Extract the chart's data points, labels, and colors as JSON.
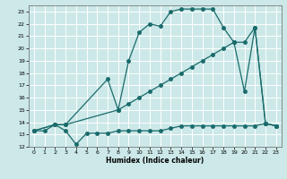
{
  "xlabel": "Humidex (Indice chaleur)",
  "bg_color": "#cce8e8",
  "grid_color": "#ffffff",
  "line_color": "#1a6b6b",
  "xlim": [
    -0.5,
    23.5
  ],
  "ylim": [
    12.0,
    23.5
  ],
  "yticks": [
    12,
    13,
    14,
    15,
    16,
    17,
    18,
    19,
    20,
    21,
    22,
    23
  ],
  "xticks": [
    0,
    1,
    2,
    3,
    4,
    5,
    6,
    7,
    8,
    9,
    10,
    11,
    12,
    13,
    14,
    15,
    16,
    17,
    18,
    19,
    20,
    21,
    22,
    23
  ],
  "line1_x": [
    0,
    1,
    2,
    3,
    4,
    5,
    6,
    7,
    8,
    9,
    10,
    11,
    12,
    13,
    14,
    15,
    16,
    17,
    18,
    19,
    20,
    21,
    22,
    23
  ],
  "line1_y": [
    13.3,
    13.3,
    13.8,
    13.3,
    12.2,
    13.1,
    13.1,
    13.1,
    13.3,
    13.3,
    13.3,
    13.3,
    13.3,
    13.5,
    13.7,
    13.7,
    13.7,
    13.7,
    13.7,
    13.7,
    13.7,
    13.7,
    13.9,
    13.7
  ],
  "line2_x": [
    0,
    2,
    3,
    7,
    8,
    9,
    10,
    11,
    12,
    13,
    14,
    15,
    16,
    17,
    18,
    19,
    20,
    21,
    22,
    23
  ],
  "line2_y": [
    13.3,
    13.8,
    13.8,
    17.5,
    15.0,
    19.0,
    21.3,
    22.0,
    21.8,
    23.0,
    23.2,
    23.2,
    23.2,
    23.2,
    21.7,
    20.5,
    16.5,
    21.7,
    13.9,
    13.7
  ],
  "line3_x": [
    0,
    2,
    3,
    8,
    9,
    10,
    11,
    12,
    13,
    14,
    15,
    16,
    17,
    18,
    19,
    20,
    21,
    22,
    23
  ],
  "line3_y": [
    13.3,
    13.8,
    13.8,
    15.0,
    15.5,
    16.0,
    16.5,
    17.0,
    17.5,
    18.0,
    18.5,
    19.0,
    19.5,
    20.0,
    20.5,
    20.5,
    21.7,
    13.9,
    13.7
  ]
}
